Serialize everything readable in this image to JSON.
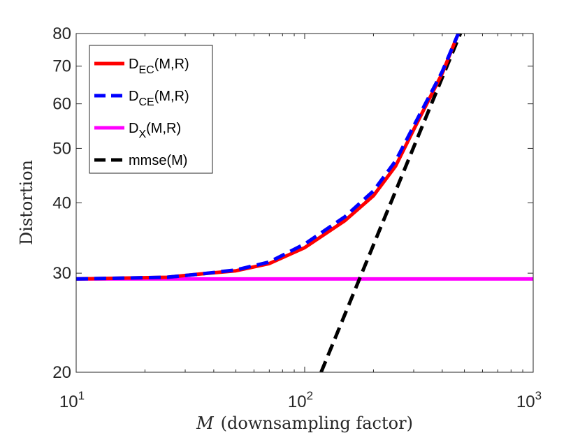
{
  "chart_data": {
    "type": "line",
    "xscale": "log",
    "yscale": "log",
    "xlim": [
      10,
      1000
    ],
    "ylim": [
      20,
      80
    ],
    "x_ticks": [
      {
        "value": 10,
        "base": "10",
        "exp": "1"
      },
      {
        "value": 100,
        "base": "10",
        "exp": "2"
      },
      {
        "value": 1000,
        "base": "10",
        "exp": "3"
      }
    ],
    "y_ticks": [
      {
        "value": 20,
        "label": "20"
      },
      {
        "value": 30,
        "label": "30"
      },
      {
        "value": 40,
        "label": "40"
      },
      {
        "value": 50,
        "label": "50"
      },
      {
        "value": 60,
        "label": "60"
      },
      {
        "value": 70,
        "label": "70"
      },
      {
        "value": 80,
        "label": "80"
      }
    ],
    "xlabel_math": "M",
    "xlabel_rest": "(downsampling factor)",
    "ylabel": "Distortion",
    "legend_location": "top-left",
    "series": [
      {
        "key": "dec",
        "name": "D_EC(M,R)",
        "legend_main": "D",
        "legend_sub": "EC",
        "legend_tail": "(M,R)",
        "color": "#ff0000",
        "style": "solid",
        "x": [
          10,
          25,
          35,
          50,
          70,
          100,
          150,
          200,
          250,
          300,
          400,
          470
        ],
        "y": [
          29.3,
          29.5,
          29.9,
          30.3,
          31.2,
          33.3,
          37.2,
          41.2,
          46.5,
          54,
          68,
          80
        ]
      },
      {
        "key": "dce",
        "name": "D_CE(M,R)",
        "legend_main": "D",
        "legend_sub": "CE",
        "legend_tail": "(M,R)",
        "color": "#0000ff",
        "style": "dashed",
        "x": [
          10,
          25,
          35,
          50,
          70,
          100,
          150,
          200,
          250,
          300,
          400,
          470
        ],
        "y": [
          29.3,
          29.5,
          29.9,
          30.4,
          31.4,
          33.8,
          37.8,
          42.0,
          47.5,
          54.8,
          68.5,
          80
        ]
      },
      {
        "key": "dx",
        "name": "D_X(M,R)",
        "legend_main": "D",
        "legend_sub": "X",
        "legend_tail": "(M,R)",
        "color": "#ff00ff",
        "style": "solid",
        "x": [
          10,
          1000
        ],
        "y": [
          29.3,
          29.3
        ]
      },
      {
        "key": "mmse",
        "name": "mmse(M)",
        "legend_main": "mmse(M)",
        "legend_sub": "",
        "legend_tail": "",
        "color": "#000000",
        "style": "dashed",
        "x": [
          118,
          480
        ],
        "y": [
          20,
          80
        ]
      }
    ]
  }
}
